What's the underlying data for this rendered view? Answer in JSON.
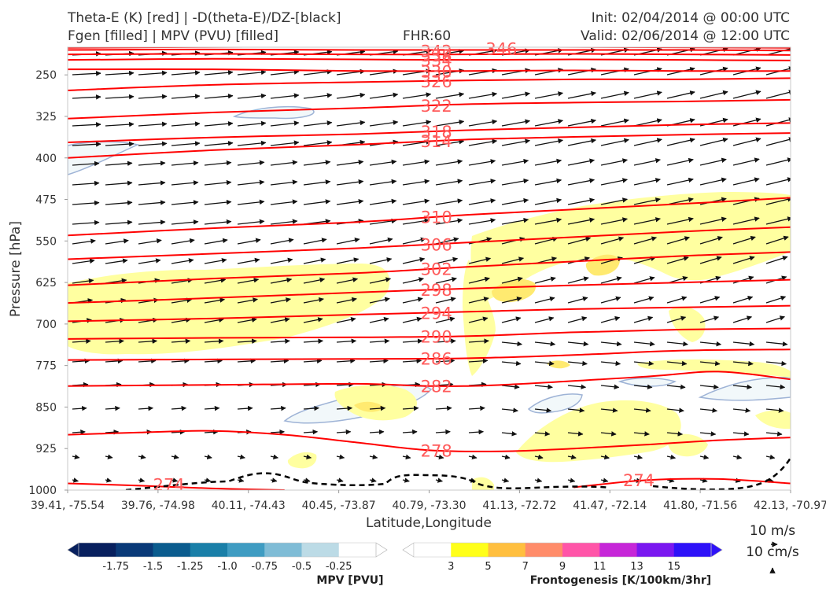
{
  "header": {
    "title_line1": "Theta-E (K) [red] | -D(theta-E)/DZ-[black]",
    "title_line2": "Fgen [filled] | MPV (PVU) [filled]",
    "fhr": "FHR:60",
    "init": "Init: 02/04/2014 @ 00:00 UTC",
    "valid": "Valid: 02/06/2014 @ 12:00 UTC"
  },
  "chart_data": {
    "type": "cross-section",
    "xlabel": "Latitude,Longitude",
    "ylabel": "Pressure [hPa]",
    "ylim": [
      1000,
      200
    ],
    "x_tick_labels": [
      "39.41, -75.54",
      "39.76, -74.98",
      "40.11, -74.43",
      "40.45, -73.87",
      "40.79, -73.30",
      "41.13, -72.72",
      "41.47, -72.14",
      "41.80, -71.56",
      "42.13, -70.97"
    ],
    "y_ticks": [
      250,
      325,
      400,
      475,
      550,
      625,
      700,
      775,
      850,
      925,
      1000
    ],
    "theta_e_contours": [
      {
        "label": "274",
        "points": [
          [
            0.0,
            988
          ],
          [
            0.1,
            992
          ],
          [
            0.2,
            997
          ],
          [
            0.3,
            1000
          ]
        ]
      },
      {
        "label": "274",
        "points": [
          [
            0.7,
            995
          ],
          [
            0.8,
            982
          ],
          [
            0.9,
            980
          ],
          [
            1.0,
            988
          ]
        ]
      },
      {
        "label": "278",
        "points": [
          [
            0.0,
            900
          ],
          [
            0.1,
            896
          ],
          [
            0.2,
            893
          ],
          [
            0.3,
            900
          ],
          [
            0.4,
            914
          ],
          [
            0.5,
            928
          ],
          [
            0.6,
            930
          ],
          [
            0.7,
            925
          ],
          [
            0.8,
            918
          ],
          [
            0.9,
            910
          ],
          [
            1.0,
            905
          ]
        ]
      },
      {
        "label": "282",
        "points": [
          [
            0.0,
            812
          ],
          [
            0.2,
            810
          ],
          [
            0.4,
            808
          ],
          [
            0.5,
            812
          ],
          [
            0.6,
            810
          ],
          [
            0.8,
            795
          ],
          [
            0.9,
            786
          ],
          [
            1.0,
            800
          ]
        ]
      },
      {
        "label": "286",
        "points": [
          [
            0.0,
            765
          ],
          [
            0.2,
            764
          ],
          [
            0.4,
            763
          ],
          [
            0.55,
            762
          ],
          [
            0.7,
            756
          ],
          [
            0.85,
            748
          ],
          [
            1.0,
            746
          ]
        ]
      },
      {
        "label": "290",
        "points": [
          [
            0.0,
            727
          ],
          [
            0.2,
            725
          ],
          [
            0.4,
            724
          ],
          [
            0.55,
            722
          ],
          [
            0.7,
            715
          ],
          [
            0.85,
            710
          ],
          [
            1.0,
            708
          ]
        ]
      },
      {
        "label": "294",
        "points": [
          [
            0.0,
            695
          ],
          [
            0.2,
            690
          ],
          [
            0.4,
            683
          ],
          [
            0.55,
            678
          ],
          [
            0.7,
            673
          ],
          [
            0.85,
            670
          ],
          [
            1.0,
            667
          ]
        ]
      },
      {
        "label": "298",
        "points": [
          [
            0.0,
            662
          ],
          [
            0.2,
            653
          ],
          [
            0.4,
            643
          ],
          [
            0.55,
            636
          ],
          [
            0.7,
            630
          ],
          [
            0.85,
            625
          ],
          [
            1.0,
            620
          ]
        ]
      },
      {
        "label": "302",
        "points": [
          [
            0.0,
            630
          ],
          [
            0.2,
            618
          ],
          [
            0.4,
            608
          ],
          [
            0.55,
            597
          ],
          [
            0.7,
            587
          ],
          [
            0.85,
            577
          ],
          [
            1.0,
            570
          ]
        ]
      },
      {
        "label": "306",
        "points": [
          [
            0.0,
            583
          ],
          [
            0.2,
            573
          ],
          [
            0.4,
            563
          ],
          [
            0.55,
            553
          ],
          [
            0.7,
            543
          ],
          [
            0.85,
            533
          ],
          [
            1.0,
            525
          ]
        ]
      },
      {
        "label": "310",
        "points": [
          [
            0.0,
            540
          ],
          [
            0.2,
            527
          ],
          [
            0.4,
            516
          ],
          [
            0.55,
            503
          ],
          [
            0.7,
            493
          ],
          [
            0.85,
            483
          ],
          [
            1.0,
            472
          ]
        ]
      },
      {
        "label": "314",
        "points": [
          [
            0.0,
            400
          ],
          [
            0.2,
            386
          ],
          [
            0.4,
            376
          ],
          [
            0.55,
            367
          ],
          [
            0.7,
            362
          ],
          [
            0.85,
            358
          ],
          [
            1.0,
            355
          ]
        ]
      },
      {
        "label": "318",
        "points": [
          [
            0.0,
            372
          ],
          [
            0.2,
            363
          ],
          [
            0.4,
            357
          ],
          [
            0.55,
            350
          ],
          [
            0.7,
            345
          ],
          [
            0.85,
            340
          ],
          [
            1.0,
            337
          ]
        ]
      },
      {
        "label": "322",
        "points": [
          [
            0.0,
            329
          ],
          [
            0.2,
            318
          ],
          [
            0.4,
            310
          ],
          [
            0.55,
            303
          ],
          [
            0.7,
            300
          ],
          [
            0.85,
            298
          ],
          [
            1.0,
            295
          ]
        ]
      },
      {
        "label": "326",
        "points": [
          [
            0.0,
            278
          ],
          [
            0.2,
            268
          ],
          [
            0.4,
            263
          ],
          [
            0.55,
            260
          ],
          [
            0.7,
            258
          ],
          [
            0.85,
            258
          ],
          [
            1.0,
            256
          ]
        ]
      },
      {
        "label": "330",
        "points": [
          [
            0.0,
            240
          ],
          [
            0.2,
            240
          ],
          [
            0.4,
            243
          ],
          [
            0.55,
            243
          ],
          [
            0.7,
            242
          ],
          [
            0.85,
            243
          ],
          [
            1.0,
            243
          ]
        ]
      },
      {
        "label": "334",
        "points": [
          [
            0.0,
            223
          ],
          [
            0.2,
            221
          ],
          [
            0.4,
            222
          ],
          [
            0.55,
            223
          ],
          [
            0.7,
            222
          ],
          [
            0.85,
            223
          ],
          [
            1.0,
            224
          ]
        ]
      },
      {
        "label": "338",
        "points": [
          [
            0.0,
            213
          ],
          [
            0.2,
            212
          ],
          [
            0.4,
            213
          ],
          [
            0.55,
            213
          ],
          [
            0.7,
            212
          ],
          [
            0.85,
            213
          ],
          [
            1.0,
            214
          ]
        ]
      },
      {
        "label": "342",
        "points": [
          [
            0.0,
            205
          ],
          [
            0.2,
            204
          ],
          [
            0.4,
            205
          ],
          [
            0.55,
            205
          ],
          [
            0.7,
            205
          ],
          [
            0.85,
            205
          ],
          [
            1.0,
            206
          ]
        ]
      },
      {
        "label": "346",
        "points": [
          [
            0.0,
            201
          ],
          [
            0.3,
            199
          ],
          [
            0.6,
            199
          ],
          [
            1.0,
            201
          ]
        ]
      }
    ],
    "mpv_colorbar": {
      "label": "MPV [PVU]",
      "ticks": [
        "-1.75",
        "-1.5",
        "-1.25",
        "-1.0",
        "-0.75",
        "-0.5",
        "-0.25"
      ],
      "colors": [
        "#08205e",
        "#0a3a78",
        "#0b5c8e",
        "#1a7fa8",
        "#3f9cc2",
        "#7fbcd6",
        "#bcdbe6",
        "#ffffff"
      ]
    },
    "fgen_colorbar": {
      "label": "Frontogenesis [K/100km/3hr]",
      "ticks": [
        "3",
        "5",
        "7",
        "9",
        "11",
        "13",
        "15"
      ],
      "colors": [
        "#ffffff",
        "#ffff1a",
        "#ffbf3f",
        "#ff8c6a",
        "#ff55a8",
        "#c627d8",
        "#7a18f0",
        "#2e12f8"
      ]
    },
    "reference_vectors": [
      "10 m/s",
      "10 cm/s"
    ]
  },
  "colors": {
    "theta_e": "#ff0000",
    "dtheta": "#000000",
    "fgen_light": "#ffffa0",
    "mpv_light": "#f2f8fa"
  }
}
